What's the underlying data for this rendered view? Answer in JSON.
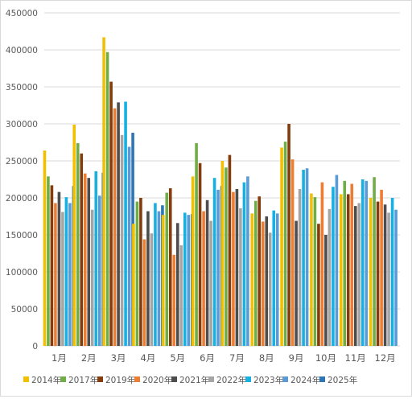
{
  "chart_data": {
    "type": "bar",
    "categories": [
      "1月",
      "2月",
      "3月",
      "4月",
      "5月",
      "6月",
      "7月",
      "8月",
      "9月",
      "10月",
      "11月",
      "12月"
    ],
    "ylim": [
      0,
      450000
    ],
    "yticks": [
      0,
      50000,
      100000,
      150000,
      200000,
      250000,
      300000,
      350000,
      400000,
      450000
    ],
    "grid": true,
    "legend_position": "bottom",
    "series": [
      {
        "name": "2014年",
        "color": "#f2c000",
        "values": [
          264000,
          299000,
          417000,
          165000,
          177000,
          229000,
          250000,
          179000,
          268000,
          206000,
          205000,
          200000
        ]
      },
      {
        "name": "2017年",
        "color": "#70ad47",
        "values": [
          229000,
          274000,
          397000,
          195000,
          207000,
          274000,
          241000,
          196000,
          276000,
          201000,
          223000,
          228000
        ]
      },
      {
        "name": "2019年",
        "color": "#843c0c",
        "values": [
          217000,
          260000,
          357000,
          200000,
          213000,
          247000,
          258000,
          202000,
          300000,
          165000,
          205000,
          195000
        ]
      },
      {
        "name": "2020年",
        "color": "#ed7d31",
        "values": [
          193000,
          233000,
          321000,
          144000,
          123000,
          182000,
          208000,
          168000,
          252000,
          221000,
          219000,
          211000
        ]
      },
      {
        "name": "2021年",
        "color": "#4d4d4d",
        "values": [
          208000,
          227000,
          329000,
          182000,
          166000,
          197000,
          212000,
          175000,
          169000,
          150000,
          189000,
          191000
        ]
      },
      {
        "name": "2022年",
        "color": "#a5a5a5",
        "values": [
          181000,
          184000,
          285000,
          152000,
          136000,
          169000,
          186000,
          153000,
          212000,
          185000,
          193000,
          180000
        ]
      },
      {
        "name": "2023年",
        "color": "#17b0e3",
        "values": [
          201000,
          236000,
          330000,
          193000,
          180000,
          227000,
          221000,
          183000,
          238000,
          215000,
          225000,
          200000
        ]
      },
      {
        "name": "2024年",
        "color": "#5b9bd5",
        "values": [
          193000,
          203000,
          269000,
          182000,
          177000,
          211000,
          229000,
          179000,
          240000,
          231000,
          223000,
          184000
        ]
      },
      {
        "name": "2025年",
        "color": "#2e75b6",
        "values": [
          216000,
          234000,
          288000,
          190000,
          178000,
          216000,
          null,
          null,
          null,
          null,
          null,
          null
        ]
      }
    ]
  }
}
